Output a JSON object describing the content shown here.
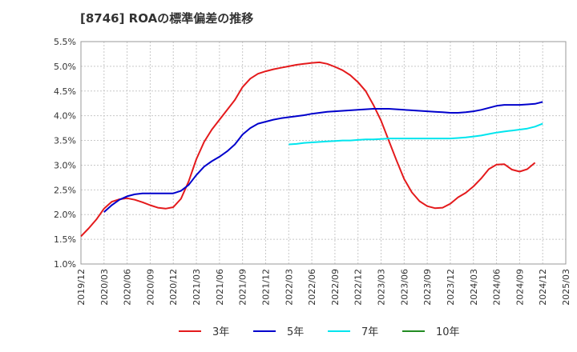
{
  "title": "[8746]  ROAの標準偏差の推移",
  "chart_data": {
    "type": "line",
    "ylim": [
      1.0,
      5.5
    ],
    "yticks": [
      "1.0%",
      "1.5%",
      "2.0%",
      "2.5%",
      "3.0%",
      "3.5%",
      "4.0%",
      "4.5%",
      "5.0%",
      "5.5%"
    ],
    "ytick_values": [
      1.0,
      1.5,
      2.0,
      2.5,
      3.0,
      3.5,
      4.0,
      4.5,
      5.0,
      5.5
    ],
    "xticks": [
      "2019/12",
      "2020/03",
      "2020/06",
      "2020/09",
      "2020/12",
      "2021/03",
      "2021/06",
      "2021/09",
      "2021/12",
      "2022/03",
      "2022/06",
      "2022/09",
      "2022/12",
      "2023/03",
      "2023/06",
      "2023/09",
      "2023/12",
      "2024/03",
      "2024/06",
      "2024/09",
      "2024/12",
      "2025/03"
    ],
    "grid": true,
    "legend_position": "bottom",
    "series": [
      {
        "name": "3年",
        "color": "#e41a1c",
        "start": "2019/12",
        "values": [
          1.56,
          1.72,
          1.9,
          2.12,
          2.26,
          2.31,
          2.33,
          2.3,
          2.25,
          2.19,
          2.14,
          2.12,
          2.15,
          2.32,
          2.67,
          3.12,
          3.47,
          3.72,
          3.92,
          4.12,
          4.32,
          4.58,
          4.75,
          4.85,
          4.9,
          4.94,
          4.97,
          5.0,
          5.03,
          5.05,
          5.07,
          5.08,
          5.05,
          4.99,
          4.92,
          4.82,
          4.68,
          4.5,
          4.22,
          3.9,
          3.5,
          3.1,
          2.72,
          2.45,
          2.27,
          2.17,
          2.13,
          2.14,
          2.22,
          2.35,
          2.44,
          2.57,
          2.73,
          2.92,
          3.01,
          3.02,
          2.91,
          2.87,
          2.92,
          3.05
        ]
      },
      {
        "name": "5年",
        "color": "#0000cc",
        "start": "2020/03",
        "values": [
          2.05,
          2.19,
          2.3,
          2.37,
          2.41,
          2.43,
          2.43,
          2.43,
          2.43,
          2.43,
          2.48,
          2.6,
          2.8,
          2.97,
          3.08,
          3.17,
          3.28,
          3.42,
          3.62,
          3.75,
          3.84,
          3.88,
          3.92,
          3.95,
          3.97,
          3.99,
          4.01,
          4.04,
          4.06,
          4.08,
          4.09,
          4.1,
          4.11,
          4.12,
          4.13,
          4.14,
          4.14,
          4.14,
          4.13,
          4.12,
          4.11,
          4.1,
          4.09,
          4.08,
          4.07,
          4.06,
          4.06,
          4.07,
          4.09,
          4.12,
          4.16,
          4.2,
          4.22,
          4.22,
          4.22,
          4.23,
          4.24,
          4.28
        ]
      },
      {
        "name": "7年",
        "color": "#00e5ee",
        "start": "2022/03",
        "values": [
          3.42,
          3.43,
          3.45,
          3.46,
          3.47,
          3.48,
          3.49,
          3.5,
          3.5,
          3.51,
          3.52,
          3.52,
          3.53,
          3.54,
          3.54,
          3.54,
          3.54,
          3.54,
          3.54,
          3.54,
          3.54,
          3.54,
          3.55,
          3.56,
          3.58,
          3.6,
          3.63,
          3.66,
          3.68,
          3.7,
          3.72,
          3.74,
          3.78,
          3.84
        ]
      },
      {
        "name": "10年",
        "color": "#228b22",
        "start": "2022/03",
        "values": []
      }
    ]
  }
}
